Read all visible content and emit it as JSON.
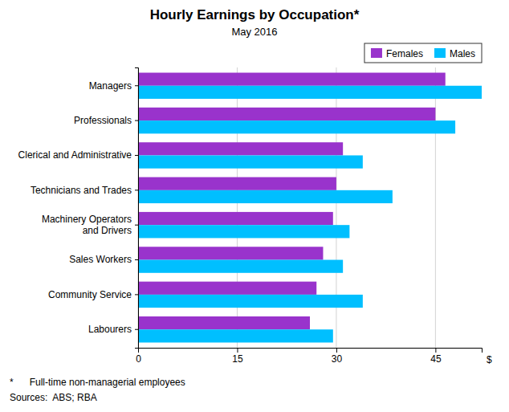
{
  "chart_data": {
    "type": "bar",
    "orientation": "horizontal",
    "title": "Hourly Earnings by Occupation*",
    "subtitle": "May 2016",
    "categories": [
      "Managers",
      "Professionals",
      "Clerical and Administrative",
      "Technicians and Trades",
      "Machinery Operators\nand Drivers",
      "Sales Workers",
      "Community Service",
      "Labourers"
    ],
    "series": [
      {
        "name": "Females",
        "color": "#9933CC",
        "values": [
          46.5,
          45,
          31,
          30,
          29.5,
          28,
          27,
          26
        ]
      },
      {
        "name": "Males",
        "color": "#00BFFF",
        "values": [
          52,
          48,
          34,
          38.5,
          32,
          31,
          34,
          29.5
        ]
      }
    ],
    "xlabel": "$",
    "xlim": [
      0,
      52
    ],
    "xticks": [
      0,
      15,
      30,
      45
    ],
    "grid": true,
    "legend": "upper right",
    "annotations": [
      "*      Full-time non-managerial employees",
      "Sources:  ABS; RBA"
    ]
  }
}
